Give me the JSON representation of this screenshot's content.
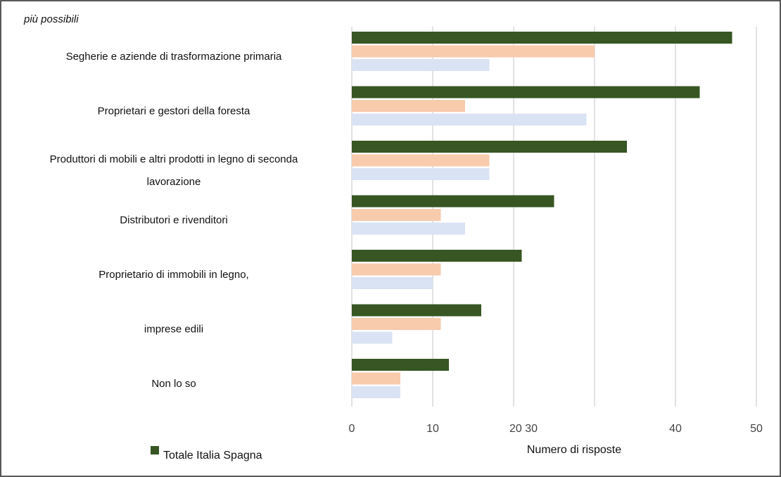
{
  "chart_data": {
    "type": "bar",
    "orientation": "horizontal",
    "subtitle": "più possibili",
    "categories": [
      [
        "Segherie e aziende di trasformazione primaria"
      ],
      [
        "Proprietari e gestori della foresta"
      ],
      [
        "Produttori di mobili e altri prodotti in legno di seconda",
        "lavorazione"
      ],
      [
        "Distributori e rivenditori"
      ],
      [
        "Proprietario di immobili in legno,"
      ],
      [
        "imprese edili"
      ],
      [
        "Non lo so"
      ]
    ],
    "series": [
      {
        "name": "Totale",
        "color": "#375623",
        "values": [
          47,
          43,
          34,
          25,
          21,
          16,
          12
        ]
      },
      {
        "name": "Italia",
        "color": "#f8cbad",
        "values": [
          30,
          14,
          17,
          11,
          11,
          11,
          6
        ]
      },
      {
        "name": "Spagna",
        "color": "#dae3f3",
        "values": [
          17,
          29,
          17,
          14,
          10,
          5,
          6
        ]
      }
    ],
    "xlim": [
      0,
      50
    ],
    "tick_labels": [
      "0",
      "10",
      "20 30",
      "40",
      "50"
    ],
    "xlabel": "Numero di risposte",
    "legend_text": "Totale Italia Spagna",
    "legend_position": "bottom-left",
    "grid": true,
    "gridline_color": "#d9d9d9"
  }
}
